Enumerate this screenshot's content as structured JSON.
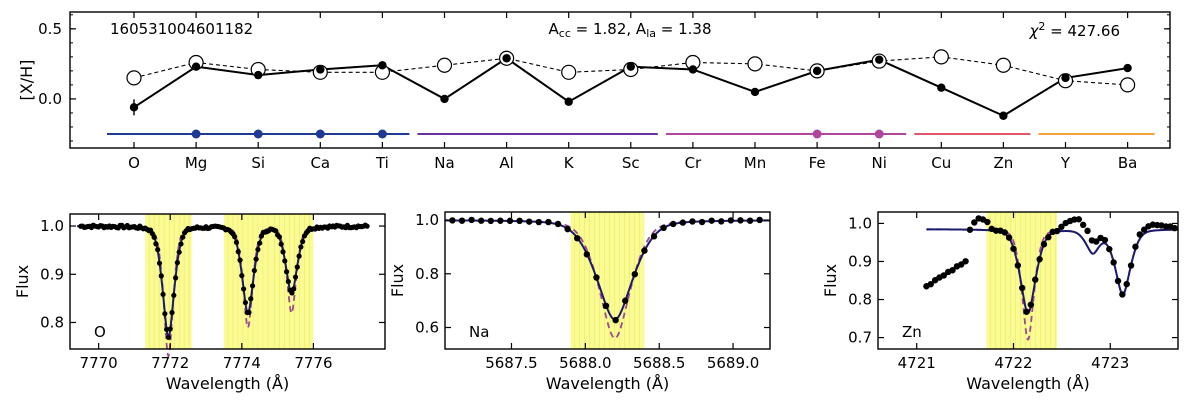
{
  "chart_data": [
    {
      "type": "line",
      "ylabel": "[X/H]",
      "ylim": [
        -0.35,
        0.62
      ],
      "yticks": [
        "0.5",
        "0.0"
      ],
      "categories": [
        "O",
        "Mg",
        "Si",
        "Ca",
        "Ti",
        "Na",
        "Al",
        "K",
        "Sc",
        "Cr",
        "Mn",
        "Fe",
        "Ni",
        "Cu",
        "Zn",
        "Y",
        "Ba"
      ],
      "series": [
        {
          "values": [
            -0.06,
            0.23,
            0.17,
            0.21,
            0.24,
            0.0,
            0.29,
            -0.02,
            0.23,
            0.21,
            0.05,
            0.2,
            0.28,
            0.08,
            -0.12,
            0.15,
            0.22
          ],
          "style": "solid-filled",
          "color": "#000000"
        },
        {
          "values": [
            0.15,
            0.26,
            0.21,
            0.19,
            0.19,
            0.24,
            0.29,
            0.19,
            0.21,
            0.26,
            0.25,
            0.2,
            0.27,
            0.3,
            0.24,
            0.13,
            0.1
          ],
          "style": "dashed-open",
          "color": "#000000"
        }
      ],
      "annotations": {
        "star_id": "160531004601182",
        "acc_prefix": "A",
        "acc_sub": "cc",
        "acc_value": " = 1.82, ",
        "ala_prefix": "A",
        "ala_sub": "la",
        "ala_value": " = 1.38",
        "chi_symbol": "χ",
        "chi_sup": "2",
        "chi_value": " = 427.66"
      },
      "groups": [
        {
          "from": "O",
          "to": "Ti",
          "color": "#1f3a93",
          "dots": [
            "Mg",
            "Si",
            "Ca",
            "Ti"
          ]
        },
        {
          "from": "Na",
          "to": "Sc",
          "color": "#6a2ea0",
          "dots": []
        },
        {
          "from": "Cr",
          "to": "Ni",
          "color": "#b0459c",
          "dots": [
            "Fe",
            "Ni"
          ]
        },
        {
          "from": "Cu",
          "to": "Zn",
          "color": "#e0566a",
          "dots": []
        },
        {
          "from": "Y",
          "to": "Ba",
          "color": "#f5a33a",
          "dots": []
        }
      ]
    },
    {
      "type": "line",
      "label": "O",
      "xlabel": "Wavelength (Å)",
      "ylabel": "Flux",
      "xlim": [
        7769.2,
        7778.0
      ],
      "ylim": [
        0.745,
        1.025
      ],
      "xticks": [
        "7770",
        "7772",
        "7774",
        "7776"
      ],
      "yticks": [
        "1.0",
        "0.9",
        "0.8"
      ],
      "highlight_ranges": [
        [
          7771.3,
          7772.6
        ],
        [
          7773.5,
          7774.8
        ],
        [
          7774.8,
          7776.0
        ]
      ],
      "lines": [
        {
          "center": 7771.95,
          "depth": 0.23,
          "width": 0.18,
          "depth_dashed": 0.27,
          "width_dashed": 0.15
        },
        {
          "center": 7774.17,
          "depth": 0.18,
          "width": 0.18,
          "depth_dashed": 0.21,
          "width_dashed": 0.15
        },
        {
          "center": 7775.39,
          "depth": 0.14,
          "width": 0.18,
          "depth_dashed": 0.18,
          "width_dashed": 0.15
        }
      ],
      "continuum": 1.0,
      "obs_x_range": [
        7769.5,
        7777.5
      ],
      "model_x_range": [
        7769.4,
        7777.5
      ]
    },
    {
      "type": "line",
      "label": "Na",
      "xlabel": "Wavelength (Å)",
      "ylabel": "Flux",
      "xlim": [
        5687.05,
        5689.25
      ],
      "ylim": [
        0.52,
        1.03
      ],
      "xticks": [
        "5687.5",
        "5688.0",
        "5688.5",
        "5689.0"
      ],
      "yticks": [
        "1.0",
        "0.8",
        "0.6"
      ],
      "highlight_ranges": [
        [
          5687.9,
          5688.4
        ]
      ],
      "lines": [
        {
          "center": 5688.2,
          "depth": 0.37,
          "width": 0.14,
          "depth_dashed": 0.44,
          "width_dashed": 0.12
        }
      ],
      "continuum": 1.0,
      "obs_x_range": [
        5687.1,
        5689.2
      ],
      "model_x_range": [
        5687.05,
        5689.25
      ]
    },
    {
      "type": "line",
      "label": "Zn",
      "xlabel": "Wavelength (Å)",
      "ylabel": "Flux",
      "xlim": [
        4720.6,
        4723.7
      ],
      "ylim": [
        0.67,
        1.03
      ],
      "xticks": [
        "4721",
        "4722",
        "4723"
      ],
      "yticks": [
        "1.0",
        "0.9",
        "0.8",
        "0.7"
      ],
      "highlight_ranges": [
        [
          4721.72,
          4722.45
        ]
      ],
      "lines": [
        {
          "center": 4722.15,
          "depth": 0.22,
          "width": 0.09,
          "depth_dashed": 0.29,
          "width_dashed": 0.07
        },
        {
          "center": 4722.82,
          "depth": 0.06,
          "width": 0.08,
          "depth_dashed": 0.06,
          "width_dashed": 0.08
        },
        {
          "center": 4723.13,
          "depth": 0.17,
          "width": 0.09,
          "depth_dashed": 0.17,
          "width_dashed": 0.09
        }
      ],
      "continuum": 0.985,
      "obs_x_range": [
        4721.1,
        4723.7
      ],
      "model_x_range": [
        4721.1,
        4723.7
      ],
      "obs_offsets": [
        {
          "from": 4721.1,
          "to": 4721.55,
          "start": -0.075,
          "end": 0.0
        },
        {
          "from": 4721.55,
          "to": 4721.78,
          "start": 0.0,
          "end": 0.03
        },
        {
          "from": 4722.45,
          "to": 4722.98,
          "start": 0.0,
          "end": 0.04
        },
        {
          "from": 4723.2,
          "to": 4723.7,
          "start": 0.0,
          "end": 0.015
        }
      ]
    }
  ],
  "colors": {
    "observed": "#000000",
    "model": "#1a1a6e",
    "model_dashed": "#9b4a8e",
    "highlight": "#fbfb96",
    "highlight_lines": "#f0f06a"
  }
}
